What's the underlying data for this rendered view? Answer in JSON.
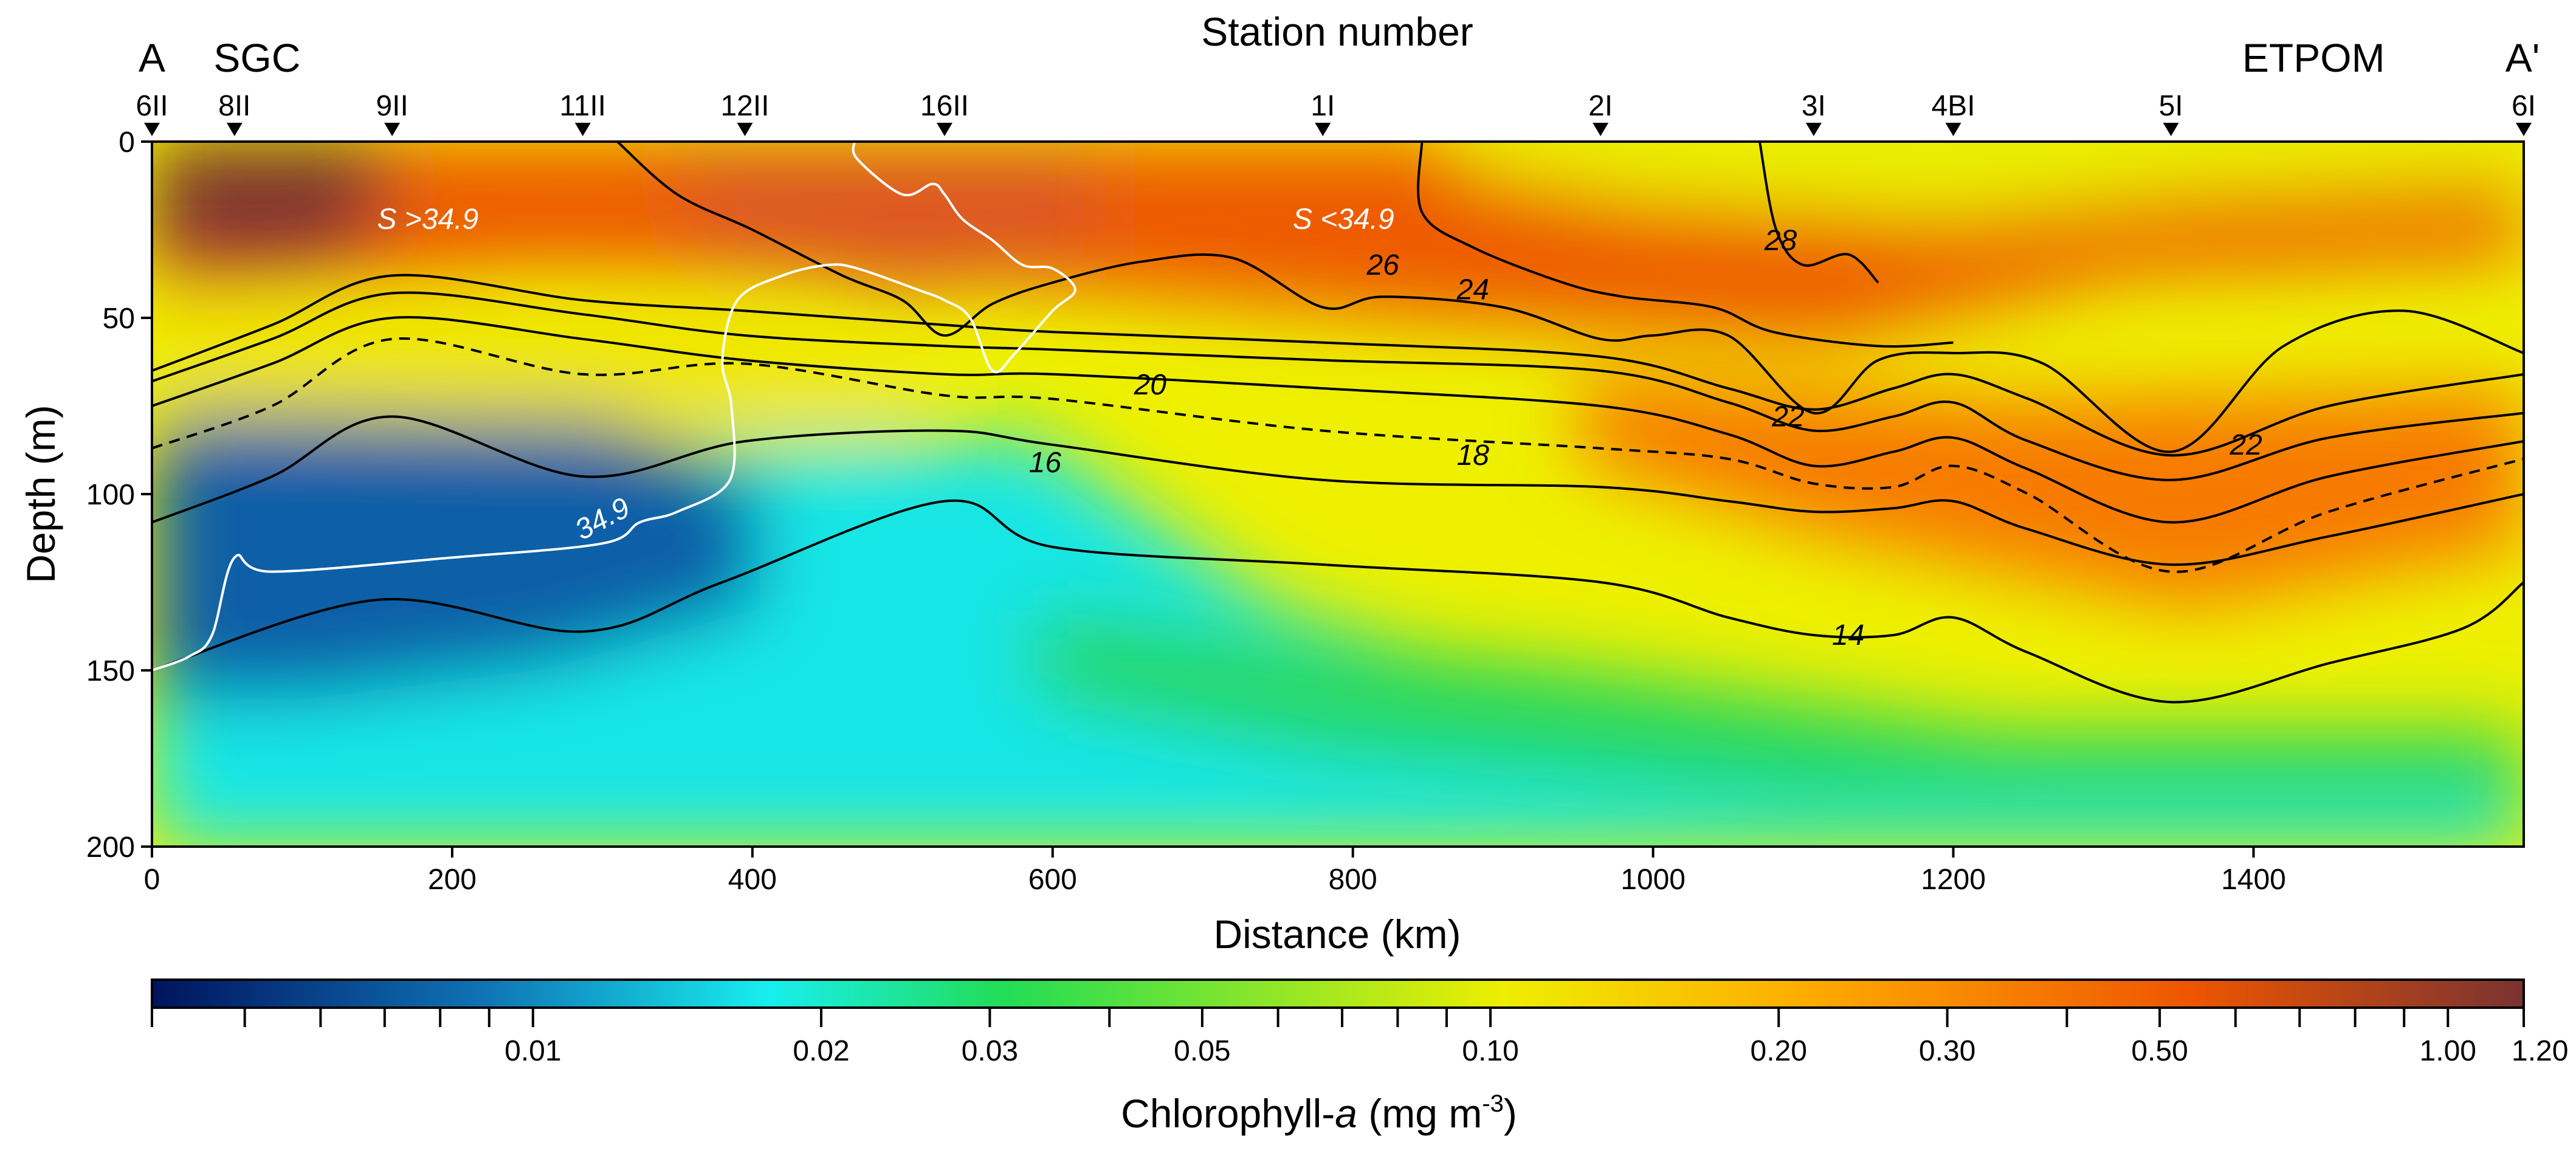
{
  "chart_data": {
    "type": "heatmap",
    "title": "Station number",
    "xlabel": "Distance (km)",
    "ylabel": "Depth (m)",
    "xlim": [
      0,
      1580
    ],
    "ylim": [
      200,
      0
    ],
    "x_ticks": [
      0,
      200,
      400,
      600,
      800,
      1000,
      1200,
      1400
    ],
    "y_ticks": [
      0,
      50,
      100,
      150,
      200
    ],
    "stations": [
      {
        "name": "6II",
        "km": 0
      },
      {
        "name": "8II",
        "km": 55
      },
      {
        "name": "9II",
        "km": 160
      },
      {
        "name": "11II",
        "km": 287
      },
      {
        "name": "12II",
        "km": 395
      },
      {
        "name": "16II",
        "km": 528
      },
      {
        "name": "1I",
        "km": 780
      },
      {
        "name": "2I",
        "km": 965
      },
      {
        "name": "3I",
        "km": 1107
      },
      {
        "name": "4BI",
        "km": 1200
      },
      {
        "name": "5I",
        "km": 1345
      },
      {
        "name": "6I",
        "km": 1580
      }
    ],
    "section_labels": [
      {
        "text": "A",
        "km": 0
      },
      {
        "text": "SGC",
        "km": 70
      },
      {
        "text": "ETPOM",
        "km": 1440
      },
      {
        "text": "A'",
        "km": 1580
      }
    ],
    "annotations": [
      {
        "text": "S >34.9",
        "x": 150,
        "depth": 22
      },
      {
        "text": "S <34.9",
        "x": 760,
        "depth": 22
      }
    ],
    "colorbar": {
      "label_main": "Chlorophyll-",
      "label_italic": "a",
      "label_unit": " (mg m",
      "label_sup": "-3",
      "label_close": ")",
      "scale": "log",
      "range": [
        0.004,
        1.2
      ],
      "tick_labels": [
        {
          "text": "0.01",
          "value": 0.01
        },
        {
          "text": "0.02",
          "value": 0.02
        },
        {
          "text": "0.03",
          "value": 0.03
        },
        {
          "text": "0.05",
          "value": 0.05
        },
        {
          "text": "0.10",
          "value": 0.1
        },
        {
          "text": "0.20",
          "value": 0.2
        },
        {
          "text": "0.30",
          "value": 0.3
        },
        {
          "text": "0.50",
          "value": 0.5
        },
        {
          "text": "1.00",
          "value": 1.0
        },
        {
          "text": "1.20",
          "value": 1.2
        }
      ],
      "minor_ticks": [
        0.005,
        0.006,
        0.007,
        0.008,
        0.009,
        0.04,
        0.06,
        0.07,
        0.08,
        0.09,
        0.4,
        0.6,
        0.7,
        0.8,
        0.9
      ],
      "colors": [
        "#00135e",
        "#0f73b5",
        "#18eeee",
        "#22dd55",
        "#eeee00",
        "#ffaa00",
        "#ee5500",
        "#7a3232"
      ]
    },
    "isotherms": [
      {
        "label": "14",
        "style": "solid",
        "points": [
          [
            0,
            150
          ],
          [
            150,
            130
          ],
          [
            287,
            139
          ],
          [
            380,
            125
          ],
          [
            528,
            102
          ],
          [
            600,
            115
          ],
          [
            780,
            120
          ],
          [
            965,
            125
          ],
          [
            1050,
            135
          ],
          [
            1107,
            140
          ],
          [
            1160,
            140
          ],
          [
            1200,
            135
          ],
          [
            1250,
            145
          ],
          [
            1345,
            159
          ],
          [
            1450,
            148
          ],
          [
            1540,
            138
          ],
          [
            1580,
            125
          ]
        ]
      },
      {
        "label": "16",
        "style": "solid",
        "points": [
          [
            0,
            108
          ],
          [
            80,
            95
          ],
          [
            160,
            78
          ],
          [
            287,
            95
          ],
          [
            395,
            85
          ],
          [
            528,
            82
          ],
          [
            600,
            86
          ],
          [
            780,
            96
          ],
          [
            965,
            98
          ],
          [
            1050,
            102
          ],
          [
            1107,
            105
          ],
          [
            1160,
            104
          ],
          [
            1200,
            102
          ],
          [
            1250,
            110
          ],
          [
            1345,
            120
          ],
          [
            1450,
            112
          ],
          [
            1580,
            100
          ]
        ]
      },
      {
        "label": "18",
        "style": "dashed",
        "points": [
          [
            0,
            87
          ],
          [
            80,
            75
          ],
          [
            160,
            56
          ],
          [
            287,
            66
          ],
          [
            395,
            63
          ],
          [
            528,
            72
          ],
          [
            600,
            73
          ],
          [
            780,
            82
          ],
          [
            965,
            87
          ],
          [
            1050,
            90
          ],
          [
            1107,
            97
          ],
          [
            1160,
            98
          ],
          [
            1200,
            92
          ],
          [
            1250,
            100
          ],
          [
            1345,
            122
          ],
          [
            1450,
            105
          ],
          [
            1580,
            90
          ]
        ]
      },
      {
        "label": "20",
        "style": "solid",
        "points": [
          [
            0,
            75
          ],
          [
            80,
            63
          ],
          [
            160,
            50
          ],
          [
            287,
            56
          ],
          [
            395,
            62
          ],
          [
            528,
            66
          ],
          [
            600,
            66
          ],
          [
            780,
            70
          ],
          [
            965,
            75
          ],
          [
            1050,
            83
          ],
          [
            1107,
            92
          ],
          [
            1160,
            88
          ],
          [
            1200,
            84
          ],
          [
            1250,
            93
          ],
          [
            1345,
            108
          ],
          [
            1450,
            95
          ],
          [
            1580,
            85
          ]
        ]
      },
      {
        "label": "22",
        "style": "solid",
        "points": [
          [
            0,
            68
          ],
          [
            80,
            56
          ],
          [
            160,
            43
          ],
          [
            287,
            49
          ],
          [
            395,
            55
          ],
          [
            528,
            58
          ],
          [
            600,
            59
          ],
          [
            780,
            62
          ],
          [
            965,
            65
          ],
          [
            1050,
            74
          ],
          [
            1107,
            82
          ],
          [
            1160,
            78
          ],
          [
            1200,
            74
          ],
          [
            1250,
            85
          ],
          [
            1345,
            96
          ],
          [
            1450,
            84
          ],
          [
            1580,
            77
          ]
        ]
      },
      {
        "label": "",
        "style": "solid",
        "points": [
          [
            0,
            65
          ],
          [
            80,
            52
          ],
          [
            160,
            38
          ],
          [
            287,
            45
          ],
          [
            395,
            48
          ],
          [
            528,
            52
          ],
          [
            600,
            54
          ],
          [
            780,
            57
          ],
          [
            965,
            61
          ],
          [
            1050,
            70
          ],
          [
            1107,
            76
          ],
          [
            1160,
            70
          ],
          [
            1200,
            66
          ],
          [
            1250,
            73
          ],
          [
            1345,
            89
          ],
          [
            1450,
            75
          ],
          [
            1580,
            66
          ]
        ]
      },
      {
        "label": "24",
        "style": "solid",
        "points": [
          [
            310,
            0
          ],
          [
            350,
            15
          ],
          [
            400,
            25
          ],
          [
            460,
            38
          ],
          [
            500,
            45
          ],
          [
            528,
            55
          ],
          [
            560,
            46
          ],
          [
            600,
            40
          ],
          [
            660,
            34
          ],
          [
            720,
            33
          ],
          [
            780,
            47
          ],
          [
            820,
            44
          ],
          [
            900,
            47
          ],
          [
            965,
            56
          ],
          [
            1000,
            55
          ],
          [
            1050,
            55
          ],
          [
            1107,
            77
          ],
          [
            1150,
            62
          ],
          [
            1200,
            60
          ],
          [
            1260,
            63
          ],
          [
            1345,
            88
          ],
          [
            1420,
            58
          ],
          [
            1500,
            48
          ],
          [
            1580,
            60
          ]
        ]
      },
      {
        "label": "26",
        "style": "solid",
        "points": [
          [
            846,
            0
          ],
          [
            846,
            20
          ],
          [
            880,
            30
          ],
          [
            940,
            40
          ],
          [
            980,
            44
          ],
          [
            1040,
            47
          ],
          [
            1080,
            54
          ],
          [
            1150,
            58
          ],
          [
            1200,
            57
          ]
        ]
      },
      {
        "label": "28",
        "style": "solid",
        "points": [
          [
            1071,
            0
          ],
          [
            1082,
            25
          ],
          [
            1100,
            35
          ],
          [
            1130,
            32
          ],
          [
            1150,
            40
          ]
        ]
      }
    ],
    "salinity_contours": [
      {
        "label": "34.9",
        "points": [
          [
            0,
            150
          ],
          [
            25,
            146
          ],
          [
            40,
            140
          ],
          [
            55,
            118
          ],
          [
            80,
            122
          ],
          [
            200,
            118
          ],
          [
            300,
            114
          ],
          [
            325,
            108
          ],
          [
            350,
            105
          ],
          [
            385,
            96
          ],
          [
            386,
            75
          ],
          [
            380,
            62
          ],
          [
            390,
            45
          ],
          [
            420,
            38
          ],
          [
            450,
            35
          ],
          [
            470,
            36
          ],
          [
            510,
            42
          ],
          [
            528,
            45
          ],
          [
            545,
            50
          ],
          [
            560,
            65
          ],
          [
            575,
            60
          ],
          [
            600,
            48
          ],
          [
            615,
            42
          ],
          [
            600,
            36
          ],
          [
            580,
            35
          ],
          [
            560,
            28
          ],
          [
            540,
            22
          ],
          [
            528,
            15
          ],
          [
            520,
            12
          ],
          [
            500,
            15
          ],
          [
            470,
            5
          ],
          [
            468,
            0
          ]
        ]
      }
    ]
  }
}
